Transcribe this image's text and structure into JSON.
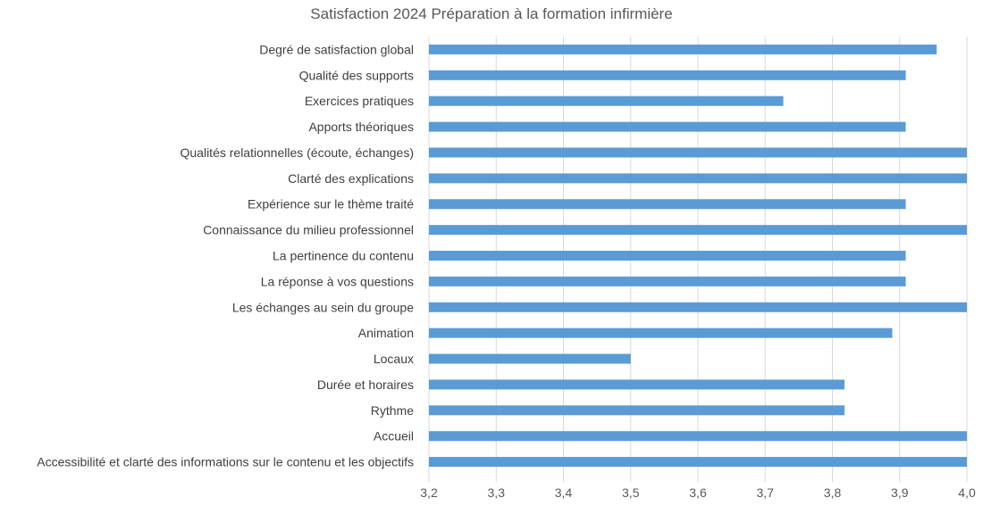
{
  "chart_data": {
    "type": "bar",
    "orientation": "horizontal",
    "title": "Satisfaction 2024 Préparation à la formation infirmière",
    "xlabel": "",
    "ylabel": "",
    "xlim": [
      3.2,
      4.0
    ],
    "x_ticks": [
      "3,2",
      "3,3",
      "3,4",
      "3,5",
      "3,6",
      "3,7",
      "3,8",
      "3,9",
      "4,0"
    ],
    "grid": true,
    "bar_color": "#5B9BD5",
    "categories": [
      "Degré de satisfaction global",
      "Qualité des supports",
      "Exercices pratiques",
      "Apports théoriques",
      "Qualités relationnelles (écoute, échanges)",
      "Clarté des explications",
      "Expérience sur le thème traité",
      "Connaissance du milieu professionnel",
      "La pertinence du contenu",
      "La réponse à vos questions",
      "Les échanges au sein du groupe",
      "Animation",
      "Locaux",
      "Durée et horaires",
      "Rythme",
      "Accueil",
      "Accessibilité et clarté des informations sur le contenu et les objectifs"
    ],
    "values": [
      3.955,
      3.909,
      3.727,
      3.909,
      4.0,
      4.0,
      3.909,
      4.0,
      3.909,
      3.909,
      4.0,
      3.889,
      3.5,
      3.818,
      3.818,
      4.0,
      4.0
    ]
  }
}
